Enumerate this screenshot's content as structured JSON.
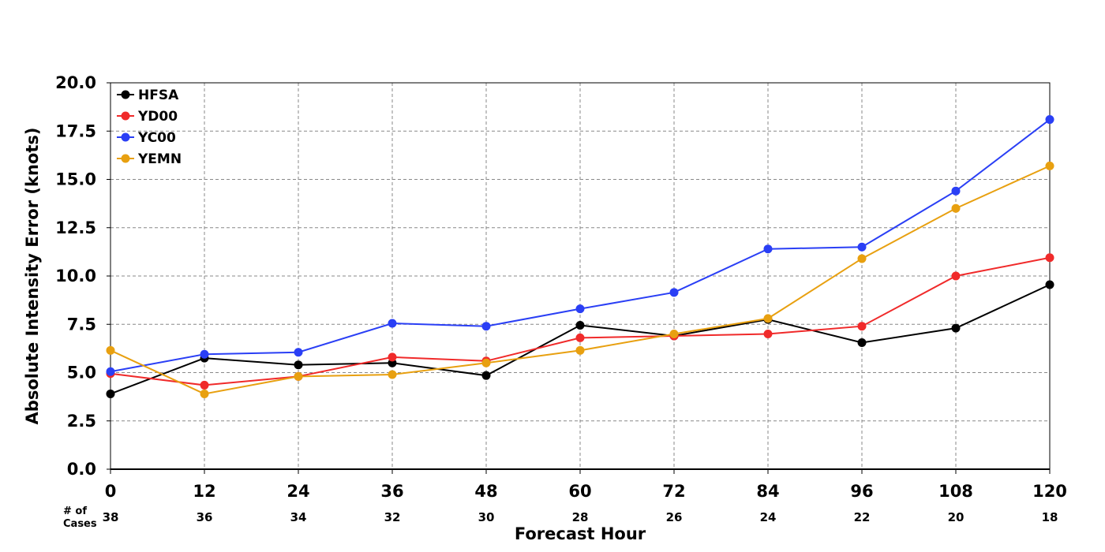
{
  "chart_data": {
    "type": "line",
    "title": "",
    "xlabel": "Forecast Hour",
    "ylabel": "Absolute Intensity Error (knots)",
    "x": [
      0,
      12,
      24,
      36,
      48,
      60,
      72,
      84,
      96,
      108,
      120
    ],
    "xlim": [
      0,
      120
    ],
    "ylim": [
      0,
      20
    ],
    "x_ticks": [
      "0",
      "12",
      "24",
      "36",
      "48",
      "60",
      "72",
      "84",
      "96",
      "108",
      "120"
    ],
    "y_ticks": [
      "0.0",
      "2.5",
      "5.0",
      "7.5",
      "10.0",
      "12.5",
      "15.0",
      "17.5",
      "20.0"
    ],
    "grid": true,
    "legend_position": "top-left",
    "cases_header": [
      "# of",
      "Cases"
    ],
    "cases": [
      "38",
      "36",
      "34",
      "32",
      "30",
      "28",
      "26",
      "24",
      "22",
      "20",
      "18"
    ],
    "series": [
      {
        "name": "HFSA",
        "color": "#000000",
        "values": [
          3.9,
          5.75,
          5.4,
          5.5,
          4.85,
          7.45,
          6.9,
          7.75,
          6.55,
          7.3,
          9.55
        ]
      },
      {
        "name": "YD00",
        "color": "#f02a2a",
        "values": [
          4.95,
          4.35,
          4.8,
          5.8,
          5.6,
          6.8,
          6.9,
          7.0,
          7.4,
          10.0,
          10.95
        ]
      },
      {
        "name": "YC00",
        "color": "#2a3ff5",
        "values": [
          5.05,
          5.95,
          6.05,
          7.55,
          7.4,
          8.3,
          9.15,
          11.4,
          11.5,
          14.4,
          18.1
        ]
      },
      {
        "name": "YEMN",
        "color": "#e8a010",
        "values": [
          6.15,
          3.9,
          4.8,
          4.9,
          5.5,
          6.15,
          7.0,
          7.8,
          10.9,
          13.5,
          15.7
        ]
      }
    ]
  }
}
